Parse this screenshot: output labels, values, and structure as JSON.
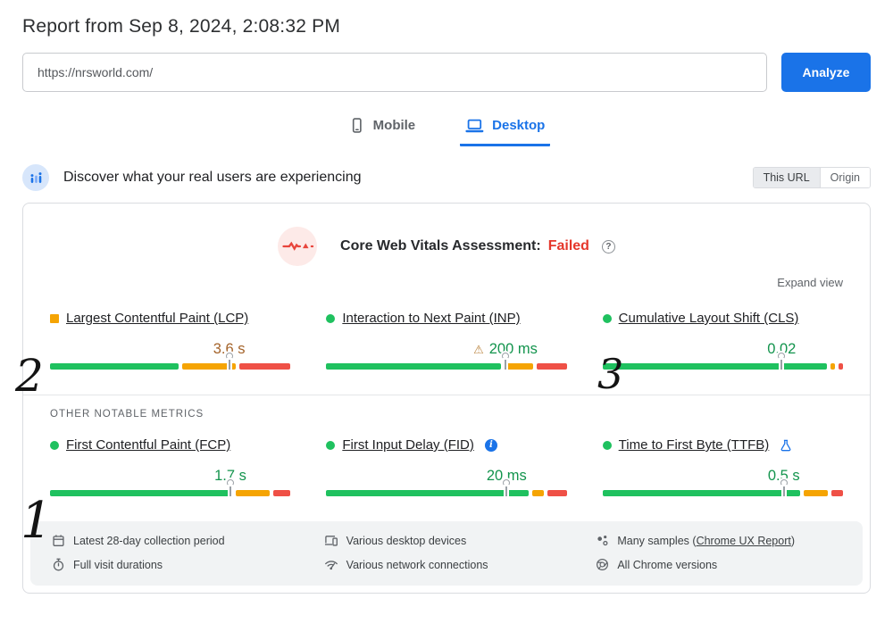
{
  "page": {
    "title": "Report from Sep 8, 2024, 2:08:32 PM"
  },
  "url_form": {
    "url_value": "https://nrsworld.com/",
    "analyze_label": "Analyze"
  },
  "device_tabs": {
    "mobile": "Mobile",
    "desktop": "Desktop",
    "selected": "Desktop"
  },
  "field_data": {
    "heading": "Discover what your real users are experiencing",
    "scope": {
      "this_url": "This URL",
      "origin": "Origin",
      "selected": "This URL"
    },
    "assessment": {
      "label": "Core Web Vitals Assessment:",
      "result": "Failed"
    },
    "expand_view_label": "Expand view",
    "other_metrics_heading": "OTHER NOTABLE METRICS",
    "core_web_vitals": [
      {
        "id": "lcp",
        "name": "Largest Contentful Paint (LCP)",
        "value": "3.6 s",
        "rating": "ni",
        "indicator": "square",
        "warning": false,
        "suffix_icon": null,
        "marker_pct": 74.5,
        "distribution": [
          55,
          23,
          22
        ]
      },
      {
        "id": "inp",
        "name": "Interaction to Next Paint (INP)",
        "value": "200 ms",
        "rating": "good",
        "indicator": "circle",
        "warning": true,
        "suffix_icon": null,
        "marker_pct": 74.5,
        "distribution": [
          75,
          12,
          13
        ]
      },
      {
        "id": "cls",
        "name": "Cumulative Layout Shift (CLS)",
        "value": "0.02",
        "rating": "good",
        "indicator": "circle",
        "warning": false,
        "suffix_icon": null,
        "marker_pct": 74.5,
        "distribution": [
          96,
          2,
          2
        ]
      }
    ],
    "other_metrics": [
      {
        "id": "fcp",
        "name": "First Contentful Paint (FCP)",
        "value": "1.7 s",
        "rating": "good",
        "indicator": "circle",
        "warning": false,
        "suffix_icon": null,
        "marker_pct": 75,
        "distribution": [
          75,
          14,
          7
        ]
      },
      {
        "id": "fid",
        "name": "First Input Delay (FID)",
        "value": "20 ms",
        "rating": "good",
        "indicator": "circle",
        "warning": false,
        "suffix_icon": "info-icon",
        "marker_pct": 75,
        "distribution": [
          85,
          5,
          8
        ]
      },
      {
        "id": "ttfb",
        "name": "Time to First Byte (TTFB)",
        "value": "0.5 s",
        "rating": "good",
        "indicator": "circle",
        "warning": false,
        "suffix_icon": "flask-icon",
        "marker_pct": 75.4,
        "distribution": [
          84,
          10,
          5
        ]
      }
    ],
    "footer": [
      {
        "icon": "calendar-icon",
        "text": "Latest 28-day collection period"
      },
      {
        "icon": "devices-icon",
        "text": "Various desktop devices"
      },
      {
        "icon": "samples-icon",
        "prefix": "Many samples (",
        "link_text": "Chrome UX Report",
        "suffix": ")"
      },
      {
        "icon": "stopwatch-icon",
        "text": "Full visit durations"
      },
      {
        "icon": "network-icon",
        "text": "Various network connections"
      },
      {
        "icon": "chrome-icon",
        "text": "All Chrome versions"
      }
    ]
  },
  "annotations": {
    "first": "1",
    "second": "2",
    "third": "3"
  },
  "colors": {
    "good": "#1fc15f",
    "ni": "#f5a403",
    "poor": "#ef5046",
    "value_good": "#13944d",
    "value_ni": "#a4632a",
    "accent": "#1a73e8",
    "failed": "#e5372b"
  }
}
